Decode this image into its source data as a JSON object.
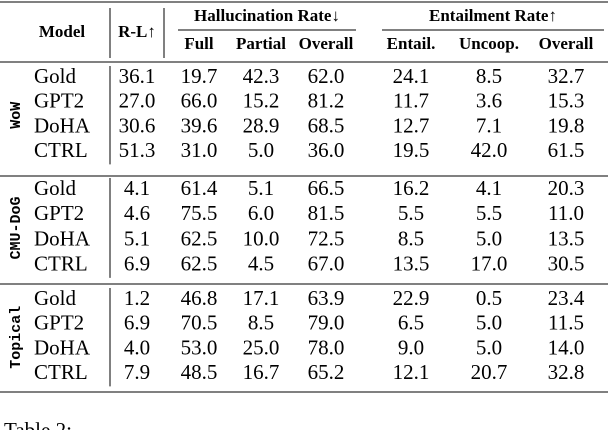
{
  "table": {
    "header": {
      "model": "Model",
      "rl": "R-L↑",
      "hallucination": "Hallucination Rate↓",
      "entailment": "Entailment Rate↑",
      "sub": [
        "Full",
        "Partial",
        "Overall",
        "Entail.",
        "Uncoop.",
        "Overall"
      ]
    },
    "groups": [
      {
        "name": "WoW",
        "rows": [
          [
            "Gold",
            "36.1",
            "19.7",
            "42.3",
            "62.0",
            "24.1",
            "8.5",
            "32.7"
          ],
          [
            "GPT2",
            "27.0",
            "66.0",
            "15.2",
            "81.2",
            "11.7",
            "3.6",
            "15.3"
          ],
          [
            "DoHA",
            "30.6",
            "39.6",
            "28.9",
            "68.5",
            "12.7",
            "7.1",
            "19.8"
          ],
          [
            "CTRL",
            "51.3",
            "31.0",
            "5.0",
            "36.0",
            "19.5",
            "42.0",
            "61.5"
          ]
        ]
      },
      {
        "name": "CMU-DoG",
        "rows": [
          [
            "Gold",
            "4.1",
            "61.4",
            "5.1",
            "66.5",
            "16.2",
            "4.1",
            "20.3"
          ],
          [
            "GPT2",
            "4.6",
            "75.5",
            "6.0",
            "81.5",
            "5.5",
            "5.5",
            "11.0"
          ],
          [
            "DoHA",
            "5.1",
            "62.5",
            "10.0",
            "72.5",
            "8.5",
            "5.0",
            "13.5"
          ],
          [
            "CTRL",
            "6.9",
            "62.5",
            "4.5",
            "67.0",
            "13.5",
            "17.0",
            "30.5"
          ]
        ]
      },
      {
        "name": "Topical",
        "rows": [
          [
            "Gold",
            "1.2",
            "46.8",
            "17.1",
            "63.9",
            "22.9",
            "0.5",
            "23.4"
          ],
          [
            "GPT2",
            "6.9",
            "70.5",
            "8.5",
            "79.0",
            "6.5",
            "5.0",
            "11.5"
          ],
          [
            "DoHA",
            "4.0",
            "53.0",
            "25.0",
            "78.0",
            "9.0",
            "5.0",
            "14.0"
          ],
          [
            "CTRL",
            "7.9",
            "48.5",
            "16.7",
            "65.2",
            "12.1",
            "20.7",
            "32.8"
          ]
        ]
      }
    ]
  },
  "caption": "Table 2:"
}
